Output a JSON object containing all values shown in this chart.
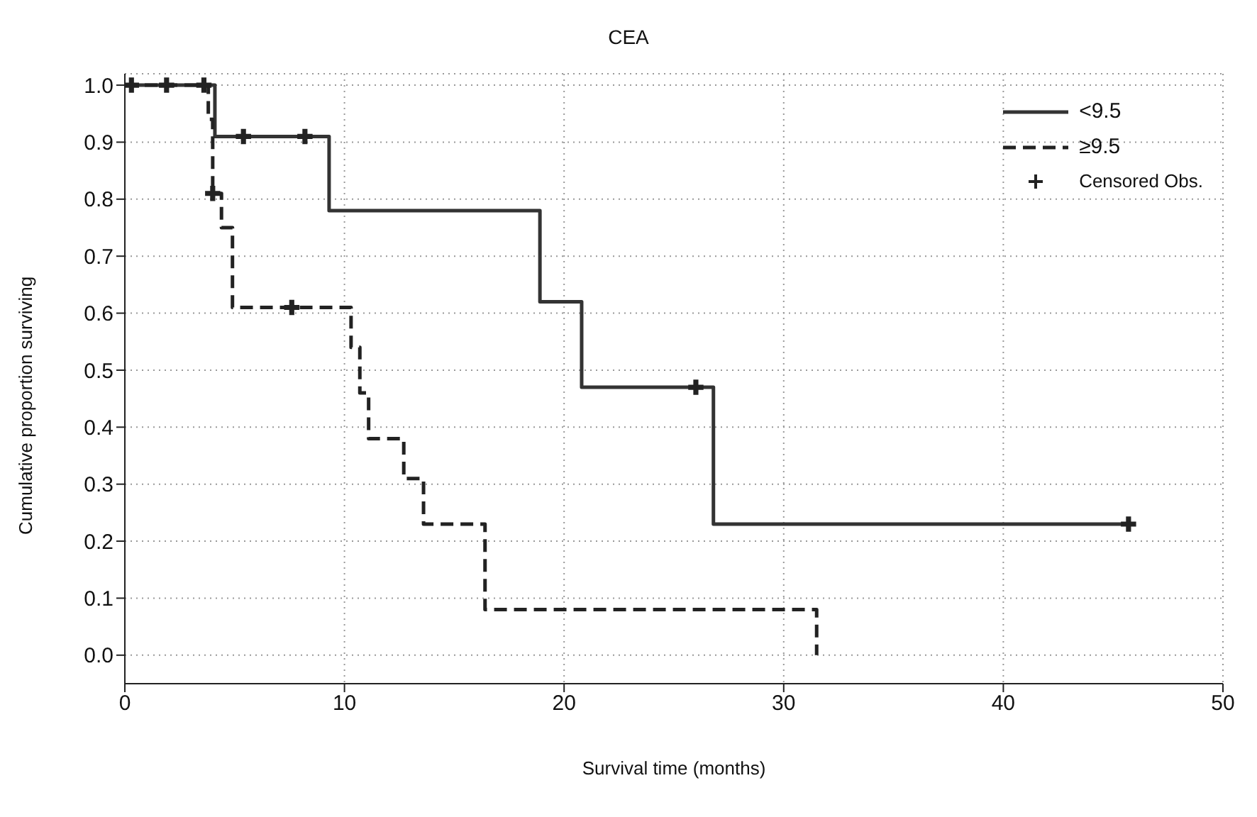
{
  "chart_data": {
    "type": "step",
    "title": "CEA",
    "xlabel": "Survival time (months)",
    "ylabel": "Cumulative proportion surviving",
    "xlim": [
      0,
      50
    ],
    "xticks": [
      0,
      10,
      20,
      30,
      40,
      50
    ],
    "ylim": [
      -0.05,
      1.02
    ],
    "yticks": [
      {
        "value": 0,
        "label": "0.0"
      },
      0.1,
      0.2,
      0.3,
      0.4,
      0.5,
      0.6,
      0.7,
      0.8,
      0.9,
      {
        "value": 1,
        "label": "1.0"
      }
    ],
    "grid": true,
    "legend": "top right",
    "series": [
      {
        "name": "<9.5",
        "color": "#333333",
        "line_style": "solid",
        "marker": "none",
        "x": [
          0,
          4.1,
          9.3,
          18.9,
          20.8,
          26.8,
          45.7
        ],
        "values": [
          1,
          0.91,
          0.78,
          0.62,
          0.47,
          0.23,
          0.23
        ]
      },
      {
        "name": "≥9.5",
        "color": "#222222",
        "line_style": "dashed",
        "marker": "none",
        "x": [
          0,
          3.8,
          4.0,
          4.4,
          4.9,
          10.3,
          10.7,
          11.1,
          12.7,
          13.6,
          16.4,
          31.5,
          31.5
        ],
        "values": [
          1,
          0.94,
          0.81,
          0.75,
          0.61,
          0.54,
          0.46,
          0.38,
          0.31,
          0.23,
          0.08,
          0.08,
          0
        ]
      },
      {
        "name": "Censored Obs.",
        "type": "scatter",
        "color": "#222222",
        "marker": "cross",
        "x": [
          0.3,
          1.9,
          3.6,
          5.4,
          8.2,
          26.0,
          45.7,
          4.0,
          7.6
        ],
        "values": [
          1,
          1,
          1,
          0.91,
          0.91,
          0.47,
          0.23,
          0.81,
          0.61
        ]
      }
    ]
  }
}
